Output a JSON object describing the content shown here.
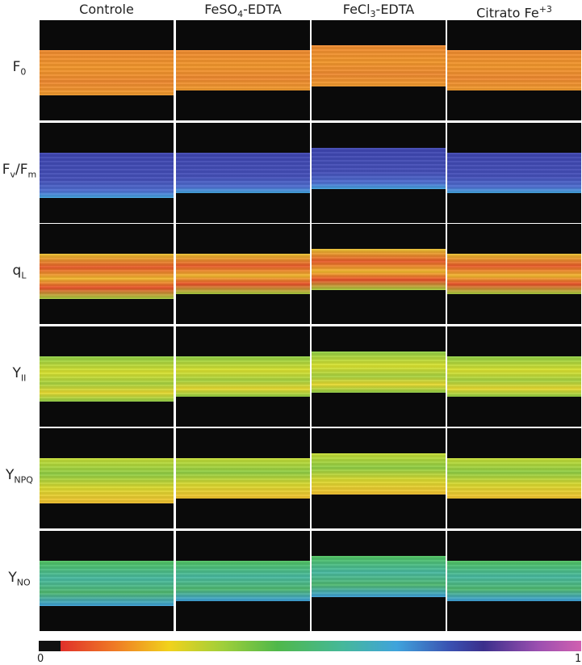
{
  "columns": [
    [
      {
        "text": "Controle"
      }
    ],
    [
      {
        "text": "FeSO"
      },
      {
        "sub": "4"
      },
      {
        "text": "-EDTA"
      }
    ],
    [
      {
        "text": "FeCl"
      },
      {
        "sub": "3"
      },
      {
        "text": "-EDTA"
      }
    ],
    [
      {
        "text": "Citrato Fe"
      },
      {
        "sup": "+3"
      }
    ]
  ],
  "rows": [
    [
      {
        "text": "F"
      },
      {
        "sub": "0"
      }
    ],
    [
      {
        "text": "F"
      },
      {
        "sub": "v"
      },
      {
        "text": "/F"
      },
      {
        "sub": "m"
      }
    ],
    [
      {
        "text": "q"
      },
      {
        "sub": "L"
      }
    ],
    [
      {
        "text": "Y"
      },
      {
        "sub": "II"
      }
    ],
    [
      {
        "text": "Y"
      },
      {
        "sub": "NPQ"
      }
    ],
    [
      {
        "text": "Y"
      },
      {
        "sub": "NO"
      }
    ]
  ],
  "colorbar": {
    "min_label": "0",
    "max_label": "1"
  }
}
